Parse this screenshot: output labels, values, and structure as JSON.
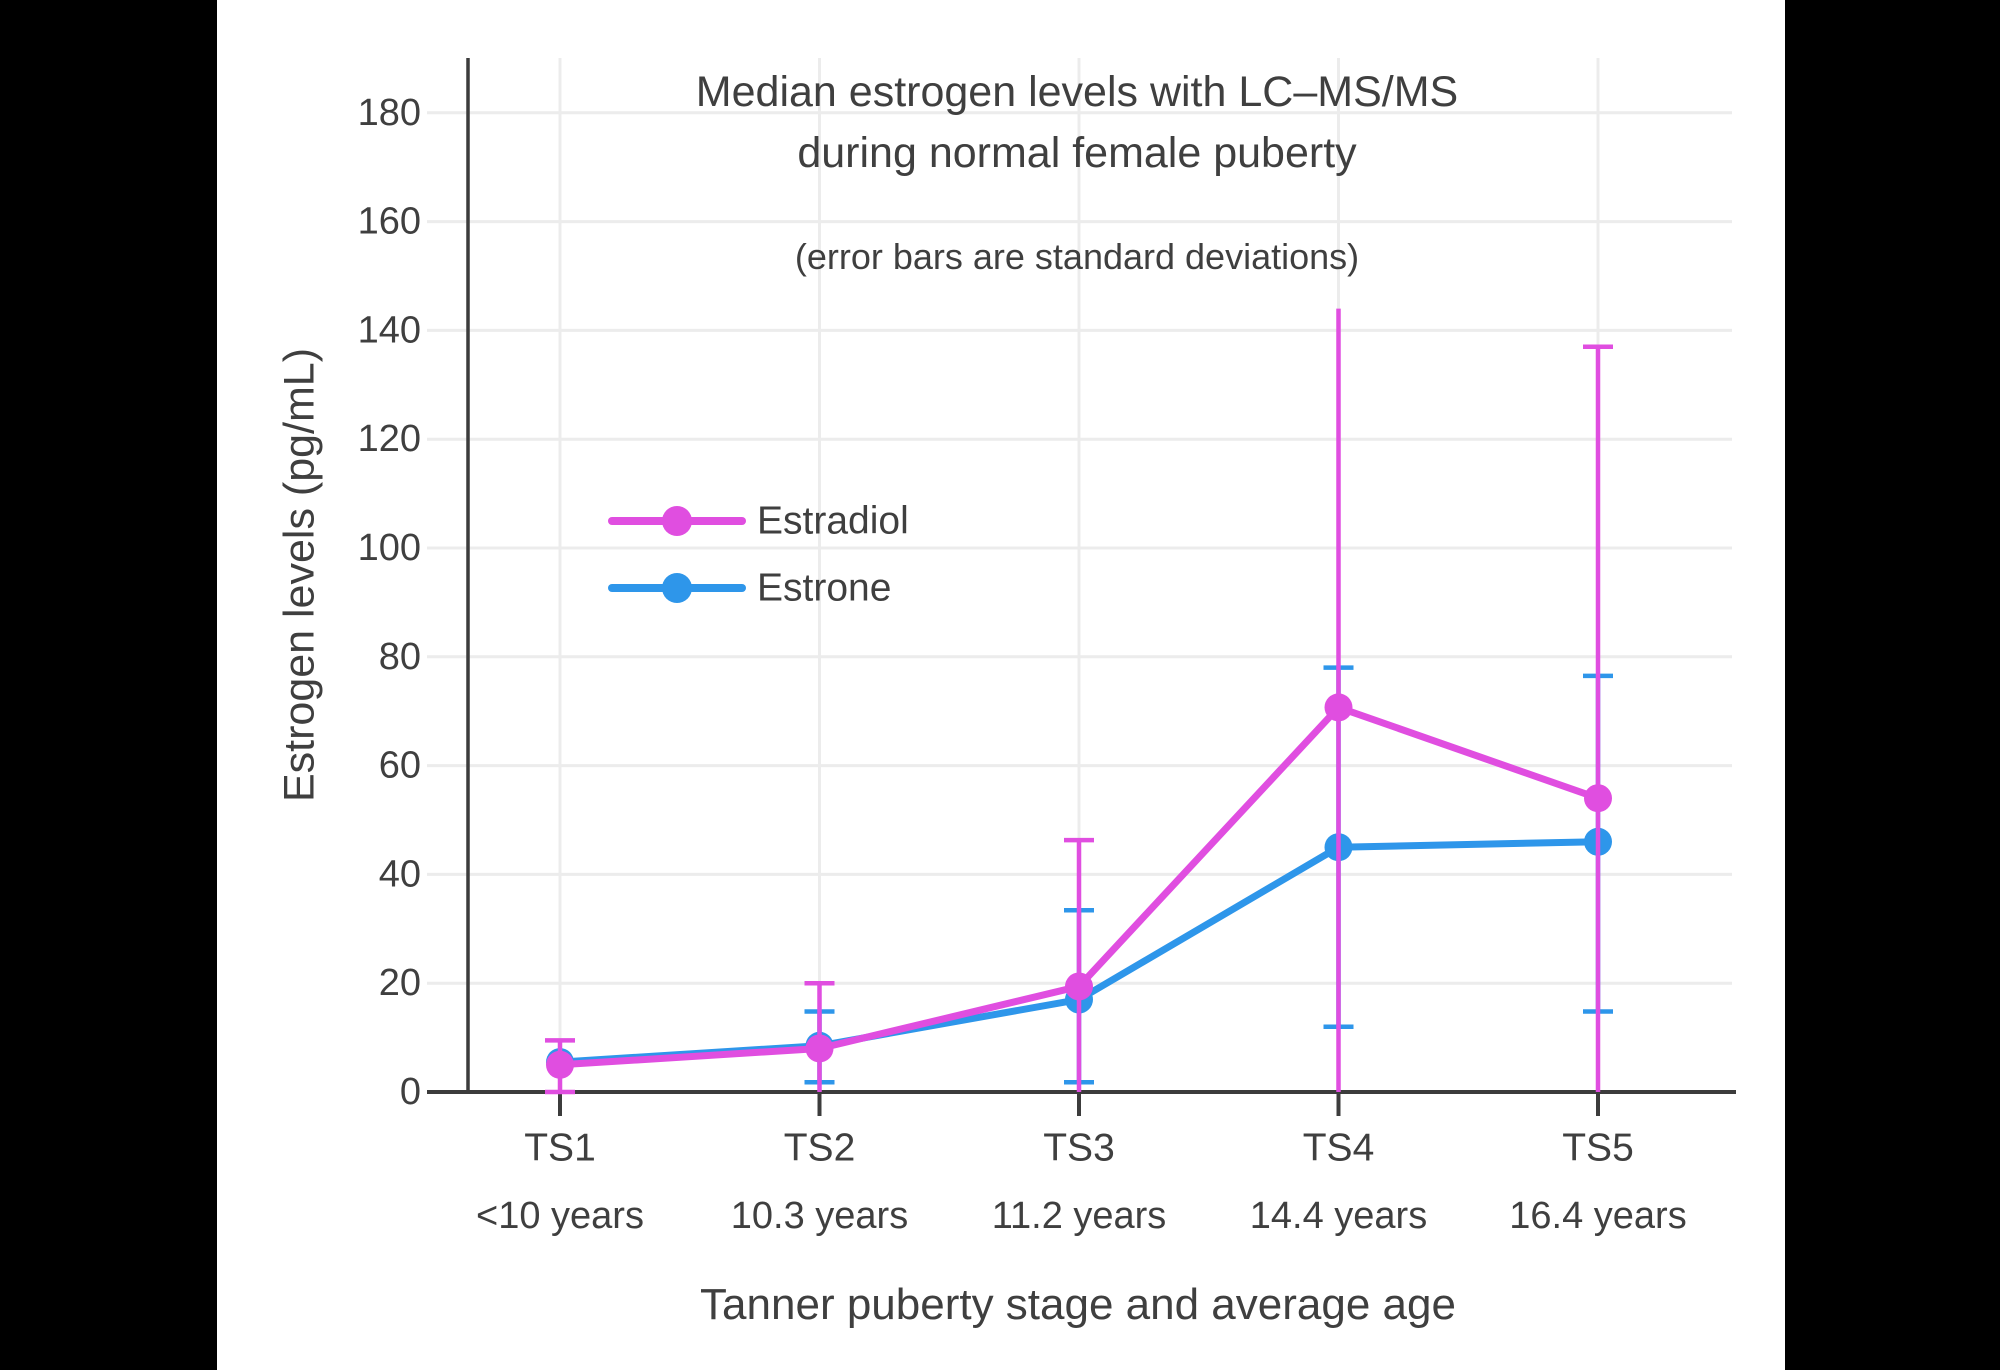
{
  "frame": {
    "matte_color": "#000000",
    "panel_color": "#ffffff",
    "text_color": "#3f3f3f",
    "grid_color": "#ececec",
    "axis_color": "#3c3c3c"
  },
  "title": {
    "line1": "Median estrogen levels with LC–MS/MS",
    "line2": "during normal female puberty",
    "subtitle": "(error bars are standard deviations)"
  },
  "axes": {
    "y_label": "Estrogen levels (pg/mL)",
    "x_label": "Tanner puberty stage and average age",
    "y_ticks": [
      0,
      20,
      40,
      60,
      80,
      100,
      120,
      140,
      160,
      180
    ],
    "stages": [
      "TS1",
      "TS2",
      "TS3",
      "TS4",
      "TS5"
    ],
    "ages": [
      "<10 years",
      "10.3 years",
      "11.2 years",
      "14.4 years",
      "16.4 years"
    ]
  },
  "legend": {
    "items": [
      {
        "label": "Estradiol",
        "color": "#e04ee0"
      },
      {
        "label": "Estrone",
        "color": "#2e96ea"
      }
    ]
  },
  "chart_data": {
    "type": "line",
    "title": "Median estrogen levels with LC–MS/MS during normal female puberty",
    "subtitle": "(error bars are standard deviations)",
    "xlabel": "Tanner puberty stage and average age",
    "ylabel": "Estrogen levels (pg/mL)",
    "categories": [
      "TS1 <10 years",
      "TS2 10.3 years",
      "TS3 11.2 years",
      "TS4 14.4 years",
      "TS5 16.4 years"
    ],
    "ylim": [
      0,
      190
    ],
    "grid": true,
    "legend_position": "inside-left-middle",
    "series": [
      {
        "name": "Estrone",
        "color": "#2e96ea",
        "values": [
          5.5,
          8.5,
          17,
          45,
          46
        ],
        "error_bars": [
          null,
          {
            "low": 1.8,
            "high": 14.8,
            "cap_low": true,
            "cap_high": true
          },
          {
            "low": 1.8,
            "high": 33.4,
            "cap_low": true,
            "cap_high": true
          },
          {
            "low": 12,
            "high": 78,
            "cap_low": true,
            "cap_high": true
          },
          {
            "low": 14.8,
            "high": 76.5,
            "cap_low": true,
            "cap_high": true
          }
        ]
      },
      {
        "name": "Estradiol",
        "color": "#e04ee0",
        "values": [
          5,
          8,
          19.4,
          70.7,
          54
        ],
        "error_bars": [
          {
            "low": 0,
            "high": 9.5,
            "cap_low": true,
            "cap_high": true
          },
          {
            "low": 0,
            "high": 20,
            "cap_low": false,
            "cap_high": true
          },
          {
            "low": 0,
            "high": 46.3,
            "cap_low": false,
            "cap_high": true
          },
          {
            "low": 0,
            "high": 144,
            "cap_low": false,
            "cap_high": false
          },
          {
            "low": 0,
            "high": 137,
            "cap_low": false,
            "cap_high": true
          }
        ]
      }
    ]
  }
}
